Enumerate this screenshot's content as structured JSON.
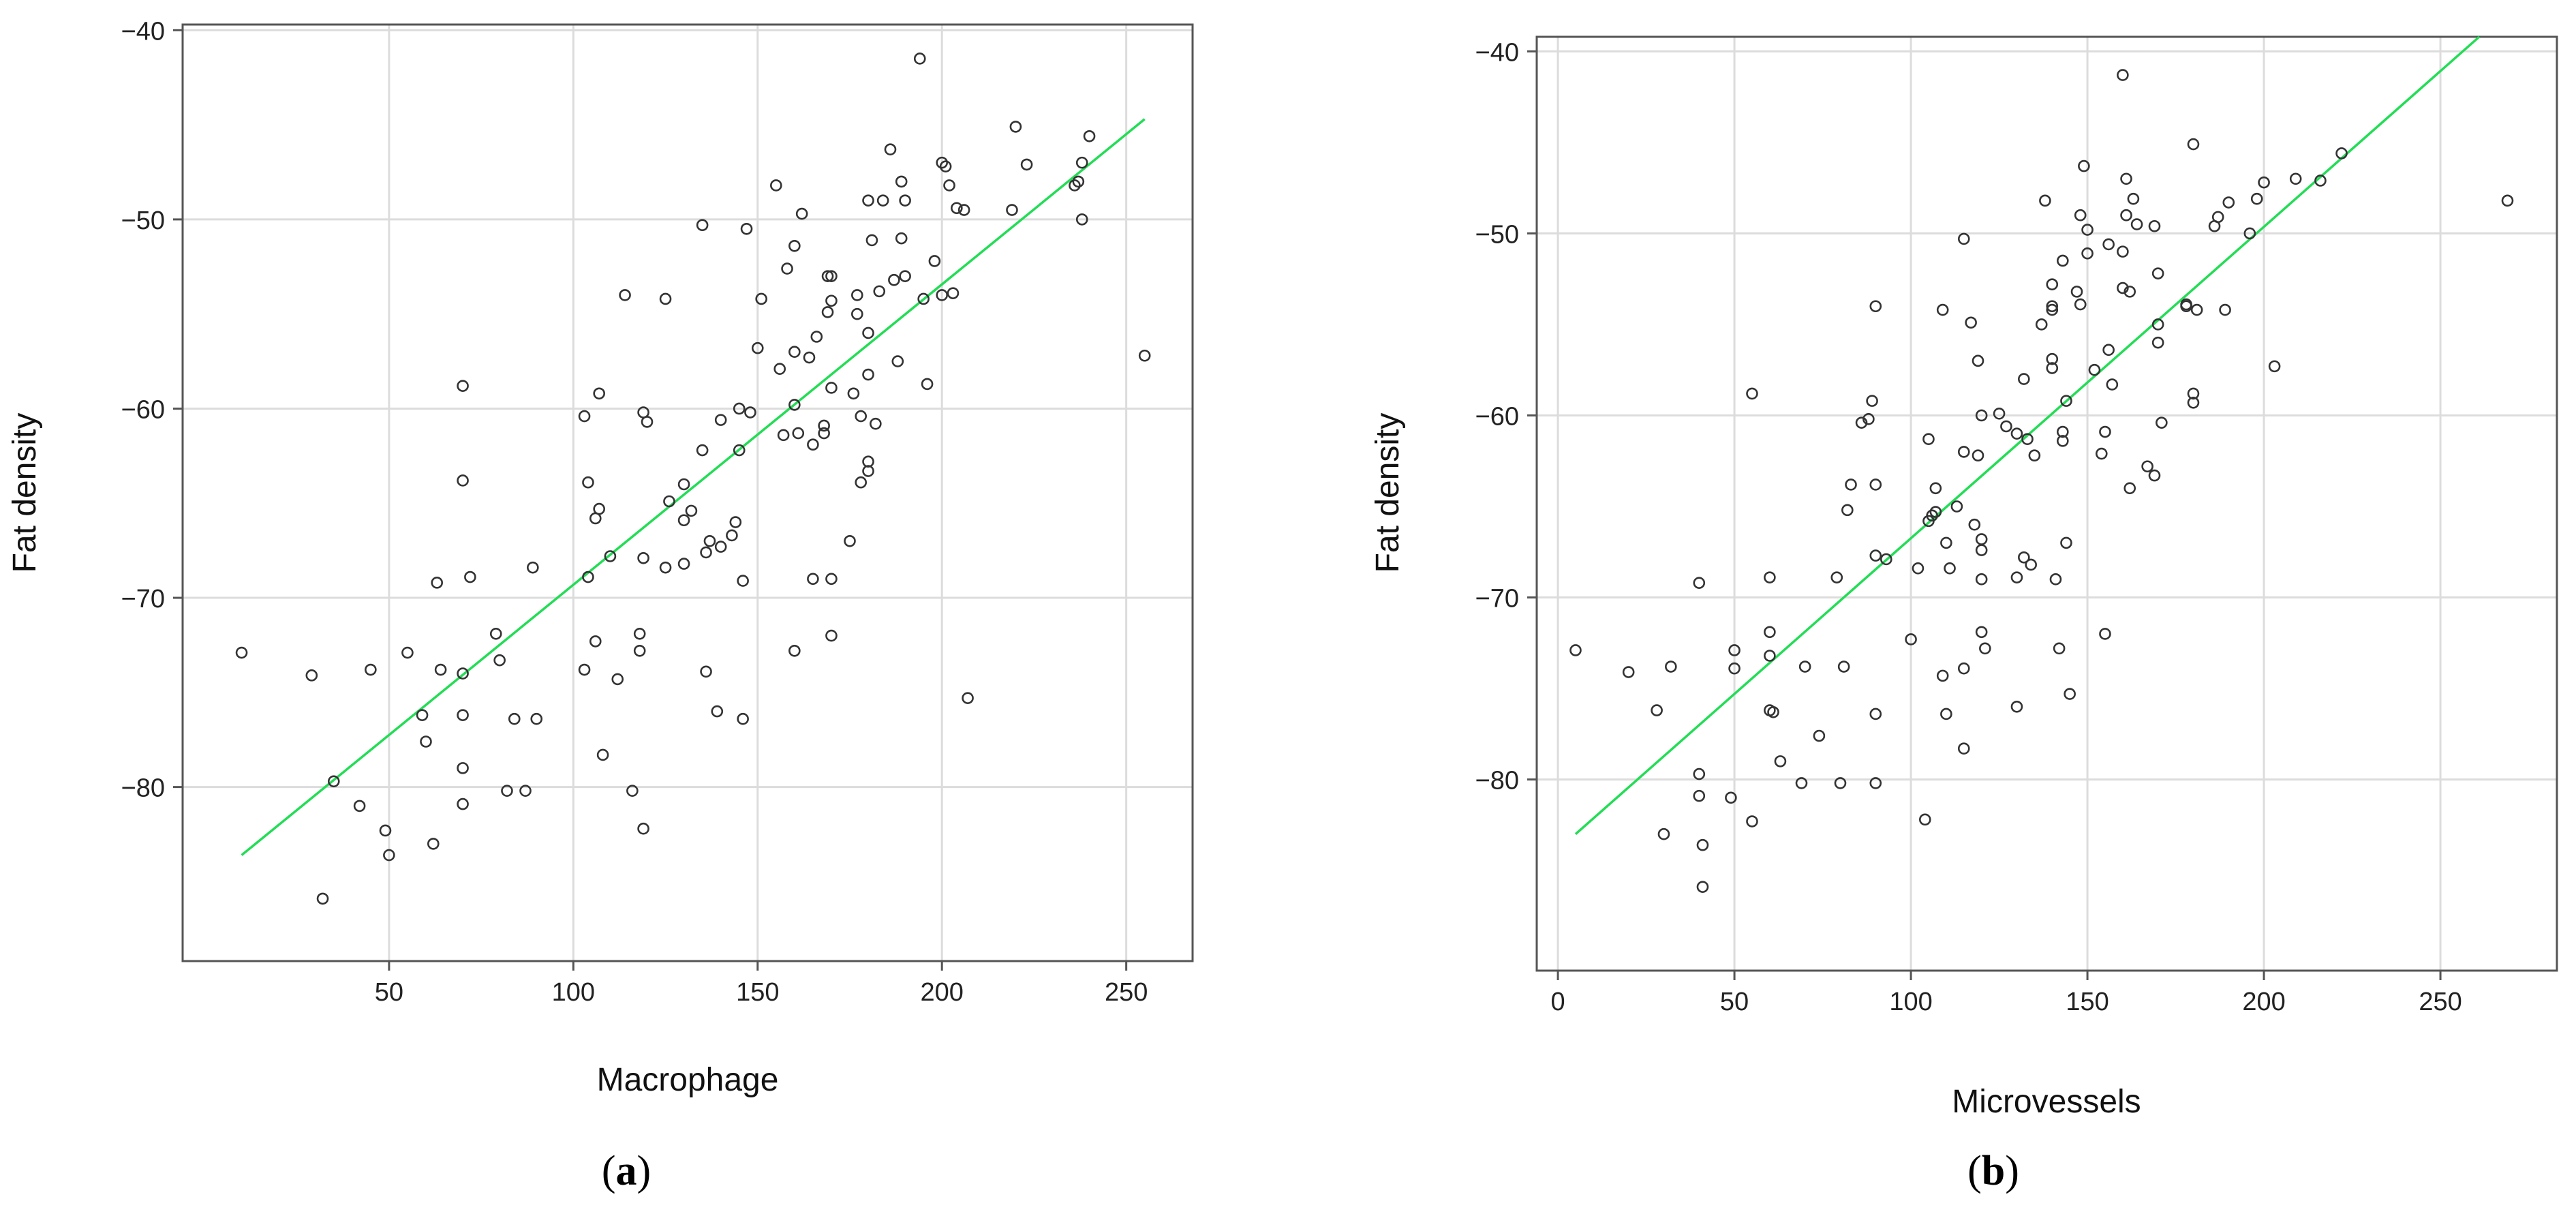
{
  "chart_data": [
    {
      "type": "scatter",
      "panel": "(a)",
      "xlabel": "Macrophage",
      "ylabel": "Fat density",
      "xlim": [
        -6,
        268
      ],
      "ylim": [
        -89.2,
        -39.7
      ],
      "xticks": [
        50,
        100,
        150,
        200,
        250
      ],
      "yticks": [
        -80,
        -70,
        -60,
        -50,
        -40
      ],
      "grid": true,
      "fit_line": {
        "color": "#22dd55",
        "x": [
          10,
          255
        ],
        "y": [
          -83.6,
          -44.7
        ]
      },
      "points": [
        [
          10,
          -72.9
        ],
        [
          29,
          -74.1
        ],
        [
          32,
          -85.9
        ],
        [
          35,
          -79.7
        ],
        [
          42,
          -81
        ],
        [
          45,
          -73.8
        ],
        [
          49,
          -82.3
        ],
        [
          50,
          -83.6
        ],
        [
          55,
          -72.9
        ],
        [
          59,
          -76.2
        ],
        [
          60,
          -77.6
        ],
        [
          62,
          -83
        ],
        [
          63,
          -69.2
        ],
        [
          64,
          -73.8
        ],
        [
          70,
          -58.8
        ],
        [
          70,
          -63.8
        ],
        [
          70,
          -74
        ],
        [
          70,
          -76.2
        ],
        [
          70,
          -79
        ],
        [
          70,
          -80.9
        ],
        [
          72,
          -68.9
        ],
        [
          79,
          -71.9
        ],
        [
          80,
          -73.3
        ],
        [
          82,
          -80.2
        ],
        [
          84,
          -76.4
        ],
        [
          87,
          -80.2
        ],
        [
          89,
          -68.4
        ],
        [
          90,
          -76.4
        ],
        [
          103,
          -60.4
        ],
        [
          103,
          -73.8
        ],
        [
          104,
          -63.9
        ],
        [
          104,
          -68.9
        ],
        [
          106,
          -65.8
        ],
        [
          106,
          -72.3
        ],
        [
          107,
          -65.3
        ],
        [
          107,
          -59.2
        ],
        [
          108,
          -78.3
        ],
        [
          110,
          -67.8
        ],
        [
          112,
          -74.3
        ],
        [
          114,
          -54
        ],
        [
          116,
          -80.2
        ],
        [
          118,
          -71.9
        ],
        [
          118,
          -72.8
        ],
        [
          119,
          -67.9
        ],
        [
          119,
          -60.2
        ],
        [
          119,
          -82.2
        ],
        [
          120,
          -60.7
        ],
        [
          125,
          -54.2
        ],
        [
          125,
          -68.4
        ],
        [
          126,
          -64.9
        ],
        [
          130,
          -68.2
        ],
        [
          130,
          -65.9
        ],
        [
          130,
          -64
        ],
        [
          132,
          -65.4
        ],
        [
          135,
          -62.2
        ],
        [
          135,
          -50.3
        ],
        [
          136,
          -67.6
        ],
        [
          136,
          -73.9
        ],
        [
          137,
          -67
        ],
        [
          139,
          -76
        ],
        [
          140,
          -60.6
        ],
        [
          140,
          -67.3
        ],
        [
          143,
          -66.7
        ],
        [
          144,
          -66
        ],
        [
          145,
          -60
        ],
        [
          145,
          -62.2
        ],
        [
          146,
          -76.4
        ],
        [
          146,
          -69.1
        ],
        [
          147,
          -50.5
        ],
        [
          148,
          -60.2
        ],
        [
          150,
          -56.8
        ],
        [
          151,
          -54.2
        ],
        [
          155,
          -48.2
        ],
        [
          156,
          -57.9
        ],
        [
          157,
          -61.4
        ],
        [
          158,
          -52.6
        ],
        [
          160,
          -51.4
        ],
        [
          160,
          -57
        ],
        [
          160,
          -59.8
        ],
        [
          160,
          -72.8
        ],
        [
          161,
          -61.3
        ],
        [
          162,
          -49.7
        ],
        [
          164,
          -57.3
        ],
        [
          165,
          -61.9
        ],
        [
          165,
          -69
        ],
        [
          166,
          -56.2
        ],
        [
          168,
          -60.9
        ],
        [
          168,
          -61.3
        ],
        [
          169,
          -53
        ],
        [
          169,
          -54.9
        ],
        [
          170,
          -53
        ],
        [
          170,
          -54.3
        ],
        [
          170,
          -58.9
        ],
        [
          170,
          -69
        ],
        [
          170,
          -72
        ],
        [
          175,
          -67
        ],
        [
          176,
          -59.2
        ],
        [
          177,
          -54
        ],
        [
          177,
          -55
        ],
        [
          178,
          -63.9
        ],
        [
          178,
          -60.4
        ],
        [
          180,
          -56
        ],
        [
          180,
          -58.2
        ],
        [
          180,
          -63.3
        ],
        [
          180,
          -62.8
        ],
        [
          180,
          -49
        ],
        [
          181,
          -51.1
        ],
        [
          182,
          -60.8
        ],
        [
          183,
          -53.8
        ],
        [
          184,
          -49
        ],
        [
          186,
          -46.3
        ],
        [
          187,
          -53.2
        ],
        [
          188,
          -57.5
        ],
        [
          189,
          -51
        ],
        [
          189,
          -48
        ],
        [
          190,
          -53
        ],
        [
          190,
          -49
        ],
        [
          194,
          -41.5
        ],
        [
          195,
          -54.2
        ],
        [
          196,
          -58.7
        ],
        [
          198,
          -52.2
        ],
        [
          200,
          -47
        ],
        [
          200,
          -54
        ],
        [
          201,
          -47.2
        ],
        [
          202,
          -48.2
        ],
        [
          203,
          -53.9
        ],
        [
          204,
          -49.4
        ],
        [
          206,
          -49.5
        ],
        [
          207,
          -75.3
        ],
        [
          219,
          -49.5
        ],
        [
          220,
          -45.1
        ],
        [
          223,
          -47.1
        ],
        [
          236,
          -48.2
        ],
        [
          237,
          -48
        ],
        [
          238,
          -47
        ],
        [
          238,
          -50
        ],
        [
          240,
          -45.6
        ],
        [
          255,
          -57.2
        ]
      ]
    },
    {
      "type": "scatter",
      "panel": "(b)",
      "xlabel": "Microvessels",
      "ylabel": "Fat density",
      "xlim": [
        -6,
        283
      ],
      "ylim": [
        -90.5,
        -39.2
      ],
      "xticks": [
        0,
        50,
        100,
        150,
        200,
        250
      ],
      "yticks": [
        -80,
        -70,
        -60,
        -50,
        -40
      ],
      "grid": true,
      "fit_line": {
        "color": "#22dd55",
        "x": [
          5,
          261
        ],
        "y": [
          -83,
          -39.2
        ]
      },
      "points": [
        [
          5,
          -72.9
        ],
        [
          20,
          -74.1
        ],
        [
          28,
          -76.2
        ],
        [
          30,
          -83
        ],
        [
          32,
          -73.8
        ],
        [
          40,
          -69.2
        ],
        [
          40,
          -79.7
        ],
        [
          40,
          -80.9
        ],
        [
          41,
          -83.6
        ],
        [
          41,
          -85.9
        ],
        [
          49,
          -81
        ],
        [
          50,
          -72.9
        ],
        [
          50,
          -73.9
        ],
        [
          55,
          -58.8
        ],
        [
          55,
          -82.3
        ],
        [
          60,
          -68.9
        ],
        [
          60,
          -71.9
        ],
        [
          60,
          -73.2
        ],
        [
          60,
          -76.2
        ],
        [
          61,
          -76.3
        ],
        [
          63,
          -79
        ],
        [
          69,
          -80.2
        ],
        [
          70,
          -73.8
        ],
        [
          74,
          -77.6
        ],
        [
          79,
          -68.9
        ],
        [
          80,
          -80.2
        ],
        [
          81,
          -73.8
        ],
        [
          82,
          -65.2
        ],
        [
          83,
          -63.8
        ],
        [
          86,
          -60.4
        ],
        [
          88,
          -60.2
        ],
        [
          89,
          -59.2
        ],
        [
          90,
          -54
        ],
        [
          90,
          -63.8
        ],
        [
          90,
          -67.7
        ],
        [
          90,
          -76.4
        ],
        [
          90,
          -80.2
        ],
        [
          93,
          -67.9
        ],
        [
          100,
          -72.3
        ],
        [
          102,
          -68.4
        ],
        [
          104,
          -82.2
        ],
        [
          105,
          -61.3
        ],
        [
          105,
          -65.8
        ],
        [
          106,
          -65.5
        ],
        [
          107,
          -64
        ],
        [
          107,
          -65.3
        ],
        [
          109,
          -54.2
        ],
        [
          109,
          -74.3
        ],
        [
          110,
          -67
        ],
        [
          110,
          -76.4
        ],
        [
          111,
          -68.4
        ],
        [
          113,
          -65
        ],
        [
          115,
          -50.3
        ],
        [
          115,
          -62
        ],
        [
          115,
          -73.9
        ],
        [
          115,
          -78.3
        ],
        [
          117,
          -54.9
        ],
        [
          118,
          -66
        ],
        [
          119,
          -57
        ],
        [
          119,
          -62.2
        ],
        [
          120,
          -66.8
        ],
        [
          120,
          -67.4
        ],
        [
          120,
          -71.9
        ],
        [
          120,
          -60
        ],
        [
          120,
          -69
        ],
        [
          121,
          -72.8
        ],
        [
          125,
          -59.9
        ],
        [
          127,
          -60.6
        ],
        [
          130,
          -61
        ],
        [
          130,
          -76
        ],
        [
          130,
          -68.9
        ],
        [
          132,
          -58
        ],
        [
          132,
          -67.8
        ],
        [
          133,
          -61.3
        ],
        [
          134,
          -68.2
        ],
        [
          135,
          -62.2
        ],
        [
          137,
          -55
        ],
        [
          138,
          -48.2
        ],
        [
          140,
          -52.8
        ],
        [
          140,
          -54
        ],
        [
          140,
          -57.4
        ],
        [
          140,
          -56.9
        ],
        [
          140,
          -54.2
        ],
        [
          141,
          -69
        ],
        [
          142,
          -72.8
        ],
        [
          143,
          -51.5
        ],
        [
          143,
          -60.9
        ],
        [
          143,
          -61.4
        ],
        [
          144,
          -59.2
        ],
        [
          144,
          -67
        ],
        [
          145,
          -75.3
        ],
        [
          147,
          -53.2
        ],
        [
          148,
          -49
        ],
        [
          148,
          -53.9
        ],
        [
          149,
          -46.3
        ],
        [
          150,
          -49.8
        ],
        [
          150,
          -51.1
        ],
        [
          152,
          -57.5
        ],
        [
          154,
          -62.1
        ],
        [
          155,
          -72
        ],
        [
          155,
          -60.9
        ],
        [
          156,
          -50.6
        ],
        [
          156,
          -56.4
        ],
        [
          157,
          -58.3
        ],
        [
          160,
          -41.3
        ],
        [
          160,
          -53
        ],
        [
          160,
          -51
        ],
        [
          161,
          -47
        ],
        [
          161,
          -49
        ],
        [
          162,
          -53.2
        ],
        [
          162,
          -64
        ],
        [
          163,
          -48.1
        ],
        [
          164,
          -49.5
        ],
        [
          167,
          -62.8
        ],
        [
          169,
          -49.6
        ],
        [
          169,
          -63.3
        ],
        [
          170,
          -52.2
        ],
        [
          170,
          -55
        ],
        [
          170,
          -56
        ],
        [
          171,
          -60.4
        ],
        [
          178,
          -53.9
        ],
        [
          178,
          -54
        ],
        [
          180,
          -58.8
        ],
        [
          180,
          -59.3
        ],
        [
          180,
          -45.1
        ],
        [
          181,
          -54.2
        ],
        [
          186,
          -49.6
        ],
        [
          187,
          -49.1
        ],
        [
          189,
          -54.2
        ],
        [
          190,
          -48.3
        ],
        [
          196,
          -50
        ],
        [
          198,
          -48.1
        ],
        [
          200,
          -47.2
        ],
        [
          203,
          -57.3
        ],
        [
          209,
          -47
        ],
        [
          216,
          -47.1
        ],
        [
          222,
          -45.6
        ],
        [
          269,
          -48.2
        ]
      ]
    }
  ]
}
